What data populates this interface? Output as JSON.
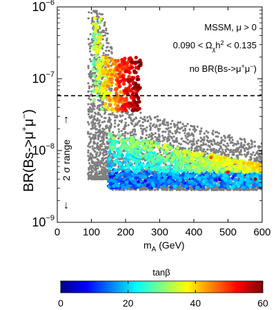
{
  "chart_data": {
    "type": "scatter",
    "title": "",
    "xlabel": {
      "base": "m",
      "sub": "A",
      "rest": " (GeV)"
    },
    "ylabel": {
      "prefix": "BR(Bs->",
      "mu1": "μ",
      "sup1": "+",
      "mu2": "μ",
      "sup2": "−",
      "suffix": ")"
    },
    "xlim": [
      0,
      600
    ],
    "ylim_log10": [
      -9,
      -6
    ],
    "y_scale": "log",
    "x_ticks": [
      0,
      100,
      200,
      300,
      400,
      500,
      600
    ],
    "x_tick_labels": [
      "0",
      "100",
      "200",
      "300",
      "400",
      "500",
      "600"
    ],
    "y_ticks": [
      {
        "base": "10",
        "exp": "−6",
        "value": 1e-06
      },
      {
        "base": "10",
        "exp": "−7",
        "value": 1e-07
      },
      {
        "base": "10",
        "exp": "−8",
        "value": 1e-08
      },
      {
        "base": "10",
        "exp": "−9",
        "value": 1e-09
      }
    ],
    "threshold_line": {
      "y": 5.8e-08,
      "style": "dashed"
    },
    "annotations": {
      "model": "MSSM, μ > 0",
      "relic_left": "0.090 < Ω",
      "relic_sub": "χ",
      "relic_sup": "h",
      "relic_exp": "2",
      "relic_right": " < 0.135",
      "constraint_left": "no BR(Bs->",
      "constraint_mu1": "μ",
      "constraint_sup1": "+",
      "constraint_mu2": "μ",
      "constraint_sup2": "−",
      "constraint_right": ")",
      "range_label": "2 σ range",
      "range_up_arrow": "↑",
      "range_down_arrow": "↓"
    },
    "colorbar": {
      "label": "tanβ",
      "min": 0,
      "max": 60,
      "ticks": [
        0,
        20,
        40,
        60
      ],
      "tick_labels": [
        "0",
        "20",
        "40",
        "60"
      ]
    },
    "series": [
      {
        "role": "excluded-grey-points",
        "color": "#7f7f7f",
        "regions": [
          {
            "x": [
              90,
              160
            ],
            "log_y_floor": -8.4,
            "log_y_ceiling": -6.05
          },
          {
            "x": [
              160,
              600
            ],
            "log_y_floor": -8.55,
            "log_y_ceiling": -7.35
          }
        ]
      },
      {
        "role": "allowed-colored-points",
        "color_by": "tanβ",
        "description_values": [
          {
            "x": 110,
            "y": 7e-07,
            "tanb": 38
          },
          {
            "x": 150,
            "y": 1.5e-07,
            "tanb": 45
          },
          {
            "x": 180,
            "y": 9e-08,
            "tanb": 52
          },
          {
            "x": 220,
            "y": 6e-08,
            "tanb": 57
          },
          {
            "x": 240,
            "y": 1.5e-07,
            "tanb": 60
          },
          {
            "x": 200,
            "y": 1.2e-08,
            "tanb": 28
          },
          {
            "x": 300,
            "y": 5e-09,
            "tanb": 22
          },
          {
            "x": 400,
            "y": 6e-09,
            "tanb": 35
          },
          {
            "x": 450,
            "y": 8e-09,
            "tanb": 48
          },
          {
            "x": 500,
            "y": 5e-09,
            "tanb": 52
          },
          {
            "x": 580,
            "y": 4e-09,
            "tanb": 58
          },
          {
            "x": 250,
            "y": 3.5e-09,
            "tanb": 8
          },
          {
            "x": 350,
            "y": 3.2e-09,
            "tanb": 12
          },
          {
            "x": 500,
            "y": 3.1e-09,
            "tanb": 18
          }
        ]
      }
    ]
  }
}
